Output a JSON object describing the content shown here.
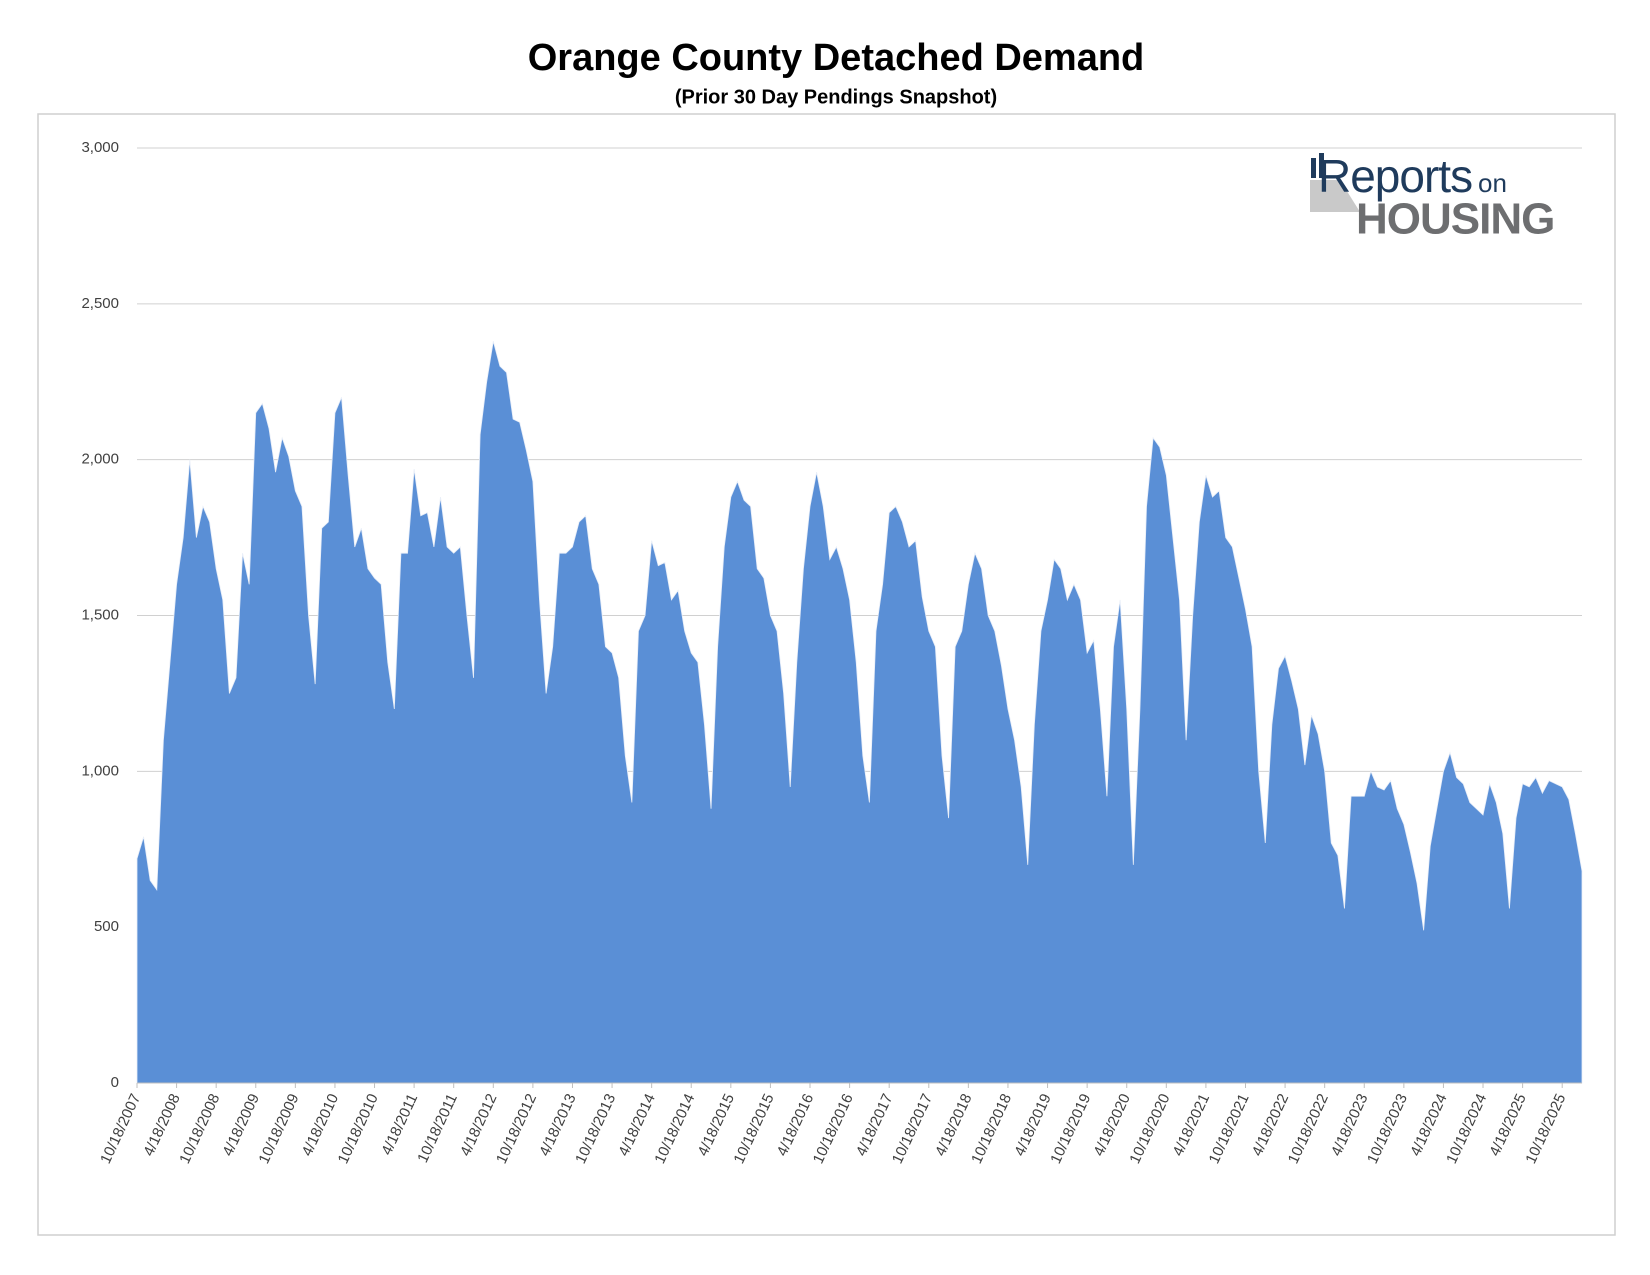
{
  "chart_data": {
    "type": "area",
    "title": "Orange County Detached Demand",
    "subtitle": "(Prior 30 Day Pendings Snapshot)",
    "logo": {
      "word": "Reports",
      "small": "on",
      "line2": "HOUSING"
    },
    "color": "#5a8fd6",
    "grid": true,
    "ylim": [
      0,
      3000
    ],
    "yticks": [
      0,
      500,
      {
        "value": 1000,
        "label": "1,000"
      },
      {
        "value": 1500,
        "label": "1,500"
      },
      {
        "value": 2000,
        "label": "2,000"
      },
      {
        "value": 2500,
        "label": "2,500"
      },
      {
        "value": 3000,
        "label": "3,000"
      }
    ],
    "categories": [
      "10/18/2007",
      null,
      null,
      null,
      null,
      null,
      "4/18/2008",
      null,
      null,
      null,
      null,
      null,
      "10/18/2008",
      null,
      null,
      null,
      null,
      null,
      "4/18/2009",
      null,
      null,
      null,
      null,
      null,
      "10/18/2009",
      null,
      null,
      null,
      null,
      null,
      "4/18/2010",
      null,
      null,
      null,
      null,
      null,
      "10/18/2010",
      null,
      null,
      null,
      null,
      null,
      "4/18/2011",
      null,
      null,
      null,
      null,
      null,
      "10/18/2011",
      null,
      null,
      null,
      null,
      null,
      "4/18/2012",
      null,
      null,
      null,
      null,
      null,
      "10/18/2012",
      null,
      null,
      null,
      null,
      null,
      "4/18/2013",
      null,
      null,
      null,
      null,
      null,
      "10/18/2013",
      null,
      null,
      null,
      null,
      null,
      "4/18/2014",
      null,
      null,
      null,
      null,
      null,
      "10/18/2014",
      null,
      null,
      null,
      null,
      null,
      "4/18/2015",
      null,
      null,
      null,
      null,
      null,
      "10/18/2015",
      null,
      null,
      null,
      null,
      null,
      "4/18/2016",
      null,
      null,
      null,
      null,
      null,
      "10/18/2016",
      null,
      null,
      null,
      null,
      null,
      "4/18/2017",
      null,
      null,
      null,
      null,
      null,
      "10/18/2017",
      null,
      null,
      null,
      null,
      null,
      "4/18/2018",
      null,
      null,
      null,
      null,
      null,
      "10/18/2018",
      null,
      null,
      null,
      null,
      null,
      "4/18/2019",
      null,
      null,
      null,
      null,
      null,
      "10/18/2019",
      null,
      null,
      null,
      null,
      null,
      "4/18/2020",
      null,
      null,
      null,
      null,
      null,
      "10/18/2020",
      null,
      null,
      null,
      null,
      null,
      "4/18/2021",
      null,
      null,
      null,
      null,
      null,
      "10/18/2021",
      null,
      null,
      null,
      null,
      null,
      "4/18/2022",
      null,
      null,
      null,
      null,
      null,
      "10/18/2022",
      null,
      null,
      null,
      null,
      null,
      "4/18/2023",
      null,
      null,
      null,
      null,
      null,
      "10/18/2023",
      null,
      null,
      null,
      null,
      null,
      "4/18/2024",
      null,
      null,
      null,
      null,
      null,
      "10/18/2024",
      null,
      null,
      null,
      null,
      null,
      "4/18/2025",
      null,
      null,
      null,
      null,
      null,
      "10/18/2025",
      null,
      null,
      null
    ],
    "values": [
      720,
      790,
      650,
      620,
      1100,
      1350,
      1600,
      1750,
      2000,
      1750,
      1850,
      1800,
      1650,
      1550,
      1250,
      1300,
      1700,
      1600,
      2150,
      2180,
      2100,
      1960,
      2070,
      2010,
      1900,
      1850,
      1500,
      1280,
      1780,
      1800,
      2150,
      2200,
      1950,
      1720,
      1780,
      1650,
      1620,
      1600,
      1350,
      1200,
      1700,
      1700,
      1970,
      1820,
      1830,
      1720,
      1880,
      1720,
      1700,
      1720,
      1500,
      1300,
      2080,
      2250,
      2380,
      2300,
      2280,
      2130,
      2120,
      2030,
      1930,
      1550,
      1250,
      1400,
      1700,
      1700,
      1720,
      1800,
      1820,
      1650,
      1600,
      1400,
      1380,
      1300,
      1050,
      900,
      1450,
      1500,
      1740,
      1660,
      1670,
      1550,
      1580,
      1450,
      1380,
      1350,
      1150,
      880,
      1400,
      1720,
      1880,
      1930,
      1870,
      1850,
      1650,
      1620,
      1500,
      1450,
      1250,
      950,
      1350,
      1650,
      1850,
      1960,
      1850,
      1680,
      1720,
      1650,
      1550,
      1350,
      1050,
      900,
      1450,
      1600,
      1830,
      1850,
      1800,
      1720,
      1740,
      1560,
      1450,
      1400,
      1050,
      850,
      1400,
      1450,
      1600,
      1700,
      1650,
      1500,
      1450,
      1340,
      1200,
      1100,
      950,
      700,
      1150,
      1450,
      1550,
      1680,
      1650,
      1550,
      1600,
      1550,
      1380,
      1420,
      1200,
      920,
      1400,
      1550,
      1200,
      700,
      1200,
      1850,
      2070,
      2040,
      1950,
      1750,
      1550,
      1100,
      1500,
      1800,
      1950,
      1880,
      1900,
      1750,
      1720,
      1620,
      1520,
      1400,
      1000,
      770,
      1150,
      1330,
      1370,
      1290,
      1200,
      1020,
      1180,
      1120,
      1000,
      770,
      730,
      560,
      920,
      920,
      920,
      1000,
      950,
      940,
      970,
      880,
      830,
      740,
      640,
      490,
      760,
      880,
      1000,
      1060,
      980,
      960,
      900,
      880,
      860,
      960,
      900,
      800,
      560,
      850,
      960,
      950,
      980,
      930,
      970,
      960,
      950,
      910,
      800,
      680
    ]
  }
}
